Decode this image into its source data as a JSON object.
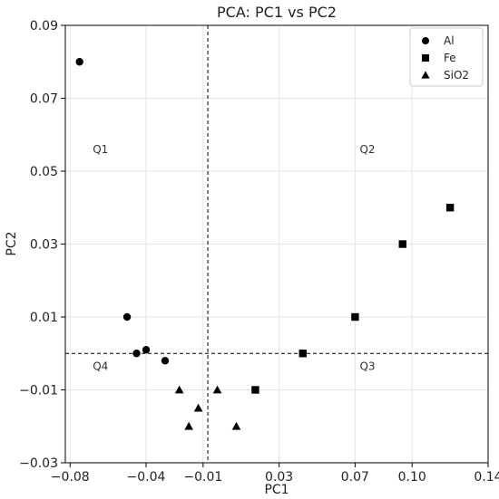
{
  "chart_data": {
    "type": "scatter",
    "title": "PCA: PC1 vs PC2",
    "xlabel": "PC1",
    "ylabel": "PC2",
    "xlim": [
      -0.0825,
      0.14
    ],
    "ylim": [
      -0.03,
      0.09
    ],
    "x_ticks": [
      -0.08,
      -0.04,
      -0.01,
      0.03,
      0.07,
      0.1,
      0.14
    ],
    "x_tick_labels": [
      "−0.08",
      "−0.04",
      "−0.01",
      "0.03",
      "0.07",
      "0.10",
      "0.14"
    ],
    "y_ticks": [
      -0.03,
      -0.01,
      0.01,
      0.03,
      0.05,
      0.07,
      0.09
    ],
    "y_tick_labels": [
      "−0.03",
      "−0.01",
      "0.01",
      "0.03",
      "0.05",
      "0.07",
      "0.09"
    ],
    "grid": true,
    "reference_lines": {
      "x": -0.0075,
      "y": 0.0
    },
    "quadrant_labels": [
      {
        "text": "Q1",
        "x": -0.064,
        "y": 0.056
      },
      {
        "text": "Q2",
        "x": 0.0765,
        "y": 0.056
      },
      {
        "text": "Q3",
        "x": 0.0765,
        "y": -0.0035
      },
      {
        "text": "Q4",
        "x": -0.064,
        "y": -0.0035
      }
    ],
    "legend_position": "top-right",
    "series": [
      {
        "name": "Al",
        "marker": "circle",
        "color": "#000000",
        "points": [
          {
            "x": -0.075,
            "y": 0.08
          },
          {
            "x": -0.05,
            "y": 0.01
          },
          {
            "x": -0.045,
            "y": 0.0
          },
          {
            "x": -0.04,
            "y": 0.001
          },
          {
            "x": -0.03,
            "y": -0.002
          }
        ]
      },
      {
        "name": "Fe",
        "marker": "square",
        "color": "#000000",
        "points": [
          {
            "x": 0.0175,
            "y": -0.01
          },
          {
            "x": 0.0425,
            "y": 0.0
          },
          {
            "x": 0.07,
            "y": 0.01
          },
          {
            "x": 0.095,
            "y": 0.03
          },
          {
            "x": 0.12,
            "y": 0.04
          }
        ]
      },
      {
        "name": "SiO2",
        "marker": "triangle",
        "color": "#000000",
        "points": [
          {
            "x": -0.0225,
            "y": -0.01
          },
          {
            "x": -0.0175,
            "y": -0.02
          },
          {
            "x": -0.0125,
            "y": -0.015
          },
          {
            "x": -0.0025,
            "y": -0.01
          },
          {
            "x": 0.0075,
            "y": -0.02
          }
        ]
      }
    ]
  }
}
